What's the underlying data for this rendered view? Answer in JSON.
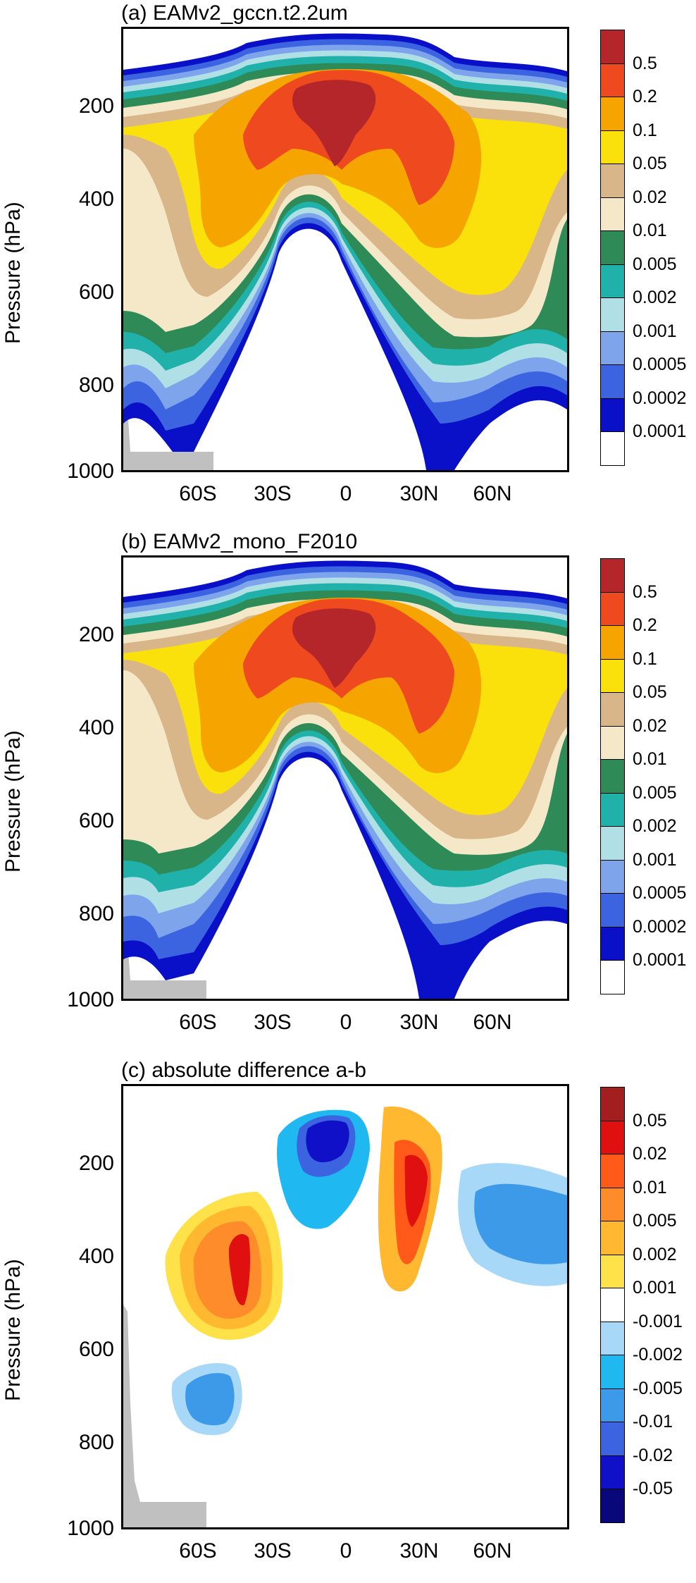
{
  "figure": {
    "ylabel": "Pressure (hPa)",
    "ytick_labels": [
      "200",
      "400",
      "600",
      "800",
      "1000"
    ],
    "xtick_labels": [
      "60S",
      "30S",
      "0",
      "30N",
      "60N"
    ]
  },
  "panels": [
    {
      "title": "(a) EAMv2_gccn.t2.2um",
      "colorbar_labels": [
        "0.5",
        "0.2",
        "0.1",
        "0.05",
        "0.02",
        "0.01",
        "0.005",
        "0.002",
        "0.001",
        "0.0005",
        "0.0002",
        "0.0001"
      ],
      "colorbar_colors": [
        "#b5262a",
        "#ef4a1f",
        "#f5a400",
        "#fae10c",
        "#d8b68a",
        "#f4e8c8",
        "#2e8b57",
        "#20b2aa",
        "#b0e0e6",
        "#7ea4ec",
        "#3c64e0",
        "#0a10c8",
        "#ffffff"
      ]
    },
    {
      "title": "(b) EAMv2_mono_F2010",
      "colorbar_labels": [
        "0.5",
        "0.2",
        "0.1",
        "0.05",
        "0.02",
        "0.01",
        "0.005",
        "0.002",
        "0.001",
        "0.0005",
        "0.0002",
        "0.0001"
      ],
      "colorbar_colors": [
        "#b5262a",
        "#ef4a1f",
        "#f5a400",
        "#fae10c",
        "#d8b68a",
        "#f4e8c8",
        "#2e8b57",
        "#20b2aa",
        "#b0e0e6",
        "#7ea4ec",
        "#3c64e0",
        "#0a10c8",
        "#ffffff"
      ]
    },
    {
      "title": "(c) absolute difference a-b",
      "colorbar_labels": [
        "0.05",
        "0.02",
        "0.01",
        "0.005",
        "0.002",
        "0.001",
        "-0.001",
        "-0.002",
        "-0.005",
        "-0.01",
        "-0.02",
        "-0.05"
      ],
      "colorbar_colors": [
        "#a31f1f",
        "#e01010",
        "#ff5a1a",
        "#ff8c2a",
        "#ffb830",
        "#ffe24a",
        "#ffffff",
        "#a8d8f8",
        "#20b8f0",
        "#3c9ae8",
        "#3c64e0",
        "#1010c8",
        "#08087a"
      ]
    }
  ],
  "chart_data": [
    {
      "type": "heatmap",
      "title": "(a) EAMv2_gccn.t2.2um",
      "ylabel": "Pressure (hPa)",
      "xlabel": "",
      "x_ticks": [
        "60S",
        "30S",
        "0",
        "30N",
        "60N"
      ],
      "xlim": [
        -90,
        90
      ],
      "y_ticks": [
        200,
        400,
        600,
        800,
        1000
      ],
      "ylim": [
        1000,
        50
      ],
      "contour_levels": [
        0.0001,
        0.0002,
        0.0005,
        0.001,
        0.002,
        0.005,
        0.01,
        0.02,
        0.05,
        0.1,
        0.2,
        0.5
      ],
      "max_region": {
        "lat_range": [
          -10,
          10
        ],
        "pressure_range": [
          130,
          300
        ],
        "value": ">0.5"
      }
    },
    {
      "type": "heatmap",
      "title": "(b) EAMv2_mono_F2010",
      "ylabel": "Pressure (hPa)",
      "xlabel": "",
      "x_ticks": [
        "60S",
        "30S",
        "0",
        "30N",
        "60N"
      ],
      "xlim": [
        -90,
        90
      ],
      "y_ticks": [
        200,
        400,
        600,
        800,
        1000
      ],
      "ylim": [
        1000,
        50
      ],
      "contour_levels": [
        0.0001,
        0.0002,
        0.0005,
        0.001,
        0.002,
        0.005,
        0.01,
        0.02,
        0.05,
        0.1,
        0.2,
        0.5
      ],
      "max_region": {
        "lat_range": [
          -10,
          10
        ],
        "pressure_range": [
          130,
          280
        ],
        "value": ">0.5"
      }
    },
    {
      "type": "heatmap",
      "title": "(c) absolute difference a-b",
      "ylabel": "Pressure (hPa)",
      "xlabel": "",
      "x_ticks": [
        "60S",
        "30S",
        "0",
        "30N",
        "60N"
      ],
      "xlim": [
        -90,
        90
      ],
      "y_ticks": [
        200,
        400,
        600,
        800,
        1000
      ],
      "ylim": [
        1000,
        50
      ],
      "contour_levels": [
        -0.05,
        -0.02,
        -0.01,
        -0.005,
        -0.002,
        -0.001,
        0.001,
        0.002,
        0.005,
        0.01,
        0.02,
        0.05
      ]
    }
  ]
}
